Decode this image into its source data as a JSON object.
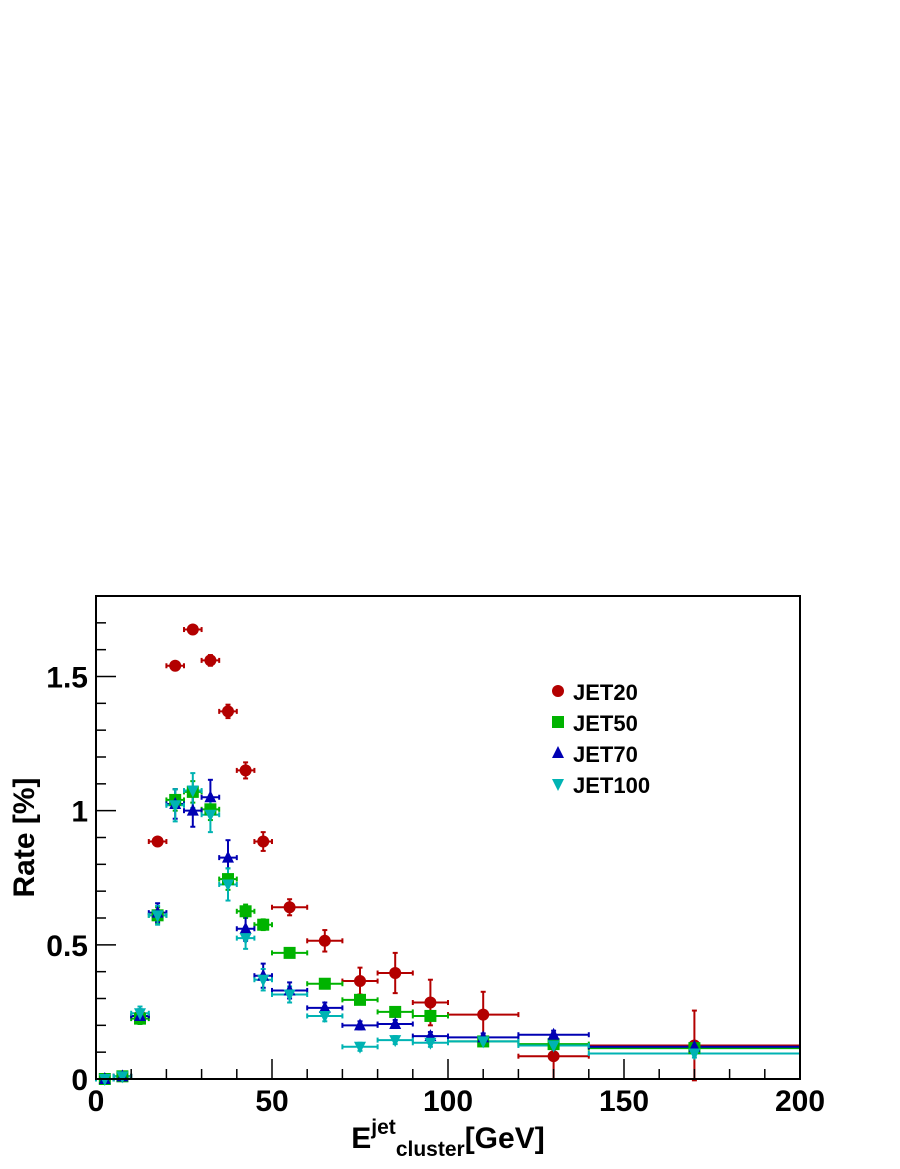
{
  "chart_data": {
    "type": "scatter",
    "xlabel_main": "E",
    "xlabel_sup": "jet",
    "xlabel_sub": "cluster",
    "xlabel_unit": "[GeV]",
    "ylabel": "Rate  [%]",
    "xlim": [
      0,
      200
    ],
    "ylim": [
      0,
      1.8
    ],
    "xticks": [
      0,
      50,
      100,
      150,
      200
    ],
    "xtick_labels": [
      "0",
      "50",
      "100",
      "150",
      "200"
    ],
    "yticks": [
      0,
      0.5,
      1,
      1.5
    ],
    "ytick_labels": [
      "0",
      "0.5",
      "1",
      "1.5"
    ],
    "grid": false,
    "legend_position": "top-right",
    "series": [
      {
        "name": "JET20",
        "color": "#b30000",
        "marker": "circle",
        "points": [
          {
            "x": 2.5,
            "y": 0.0,
            "xerr": 2.5,
            "yerr": 0.0
          },
          {
            "x": 7.5,
            "y": 0.01,
            "xerr": 2.5,
            "yerr": 0.003
          },
          {
            "x": 12.5,
            "y": 0.235,
            "xerr": 2.5,
            "yerr": 0.01
          },
          {
            "x": 17.5,
            "y": 0.885,
            "xerr": 2.5,
            "yerr": 0.015
          },
          {
            "x": 22.5,
            "y": 1.54,
            "xerr": 2.5,
            "yerr": 0.015
          },
          {
            "x": 27.5,
            "y": 1.675,
            "xerr": 2.5,
            "yerr": 0.015
          },
          {
            "x": 32.5,
            "y": 1.56,
            "xerr": 2.5,
            "yerr": 0.02
          },
          {
            "x": 37.5,
            "y": 1.37,
            "xerr": 2.5,
            "yerr": 0.025
          },
          {
            "x": 42.5,
            "y": 1.15,
            "xerr": 2.5,
            "yerr": 0.03
          },
          {
            "x": 47.5,
            "y": 0.885,
            "xerr": 2.5,
            "yerr": 0.035
          },
          {
            "x": 55,
            "y": 0.64,
            "xerr": 5,
            "yerr": 0.03
          },
          {
            "x": 65,
            "y": 0.515,
            "xerr": 5,
            "yerr": 0.04
          },
          {
            "x": 75,
            "y": 0.365,
            "xerr": 5,
            "yerr": 0.05
          },
          {
            "x": 85,
            "y": 0.395,
            "xerr": 5,
            "yerr": 0.075
          },
          {
            "x": 95,
            "y": 0.285,
            "xerr": 5,
            "yerr": 0.085
          },
          {
            "x": 110,
            "y": 0.24,
            "xerr": 10,
            "yerr": 0.085
          },
          {
            "x": 130,
            "y": 0.085,
            "xerr": 10,
            "yerr": 0.085
          },
          {
            "x": 170,
            "y": 0.125,
            "xerr": 30,
            "yerr": 0.13
          }
        ]
      },
      {
        "name": "JET50",
        "color": "#00b300",
        "marker": "square",
        "points": [
          {
            "x": 2.5,
            "y": 0.0,
            "xerr": 2.5,
            "yerr": 0.0
          },
          {
            "x": 7.5,
            "y": 0.01,
            "xerr": 2.5,
            "yerr": 0.003
          },
          {
            "x": 12.5,
            "y": 0.225,
            "xerr": 2.5,
            "yerr": 0.02
          },
          {
            "x": 17.5,
            "y": 0.61,
            "xerr": 2.5,
            "yerr": 0.03
          },
          {
            "x": 22.5,
            "y": 1.04,
            "xerr": 2.5,
            "yerr": 0.04
          },
          {
            "x": 27.5,
            "y": 1.07,
            "xerr": 2.5,
            "yerr": 0.04
          },
          {
            "x": 32.5,
            "y": 1.005,
            "xerr": 2.5,
            "yerr": 0.04
          },
          {
            "x": 37.5,
            "y": 0.745,
            "xerr": 2.5,
            "yerr": 0.04
          },
          {
            "x": 42.5,
            "y": 0.625,
            "xerr": 2.5,
            "yerr": 0.025
          },
          {
            "x": 47.5,
            "y": 0.575,
            "xerr": 2.5,
            "yerr": 0.02
          },
          {
            "x": 55,
            "y": 0.47,
            "xerr": 5,
            "yerr": 0.015
          },
          {
            "x": 65,
            "y": 0.355,
            "xerr": 5,
            "yerr": 0.015
          },
          {
            "x": 75,
            "y": 0.295,
            "xerr": 5,
            "yerr": 0.015
          },
          {
            "x": 85,
            "y": 0.25,
            "xerr": 5,
            "yerr": 0.015
          },
          {
            "x": 95,
            "y": 0.235,
            "xerr": 5,
            "yerr": 0.015
          },
          {
            "x": 110,
            "y": 0.14,
            "xerr": 10,
            "yerr": 0.015
          },
          {
            "x": 130,
            "y": 0.13,
            "xerr": 10,
            "yerr": 0.015
          },
          {
            "x": 170,
            "y": 0.115,
            "xerr": 30,
            "yerr": 0.015
          }
        ]
      },
      {
        "name": "JET70",
        "color": "#0000b3",
        "marker": "triangle-up",
        "points": [
          {
            "x": 2.5,
            "y": 0.0,
            "xerr": 2.5,
            "yerr": 0.0
          },
          {
            "x": 7.5,
            "y": 0.01,
            "xerr": 2.5,
            "yerr": 0.003
          },
          {
            "x": 12.5,
            "y": 0.235,
            "xerr": 2.5,
            "yerr": 0.025
          },
          {
            "x": 17.5,
            "y": 0.62,
            "xerr": 2.5,
            "yerr": 0.035
          },
          {
            "x": 22.5,
            "y": 1.025,
            "xerr": 2.5,
            "yerr": 0.055
          },
          {
            "x": 27.5,
            "y": 1.0,
            "xerr": 2.5,
            "yerr": 0.06
          },
          {
            "x": 32.5,
            "y": 1.05,
            "xerr": 2.5,
            "yerr": 0.065
          },
          {
            "x": 37.5,
            "y": 0.825,
            "xerr": 2.5,
            "yerr": 0.065
          },
          {
            "x": 42.5,
            "y": 0.56,
            "xerr": 2.5,
            "yerr": 0.045
          },
          {
            "x": 47.5,
            "y": 0.385,
            "xerr": 2.5,
            "yerr": 0.045
          },
          {
            "x": 55,
            "y": 0.33,
            "xerr": 5,
            "yerr": 0.03
          },
          {
            "x": 65,
            "y": 0.265,
            "xerr": 5,
            "yerr": 0.02
          },
          {
            "x": 75,
            "y": 0.2,
            "xerr": 5,
            "yerr": 0.015
          },
          {
            "x": 85,
            "y": 0.205,
            "xerr": 5,
            "yerr": 0.015
          },
          {
            "x": 95,
            "y": 0.16,
            "xerr": 5,
            "yerr": 0.015
          },
          {
            "x": 110,
            "y": 0.155,
            "xerr": 10,
            "yerr": 0.015
          },
          {
            "x": 130,
            "y": 0.165,
            "xerr": 10,
            "yerr": 0.015
          },
          {
            "x": 170,
            "y": 0.12,
            "xerr": 30,
            "yerr": 0.015
          }
        ]
      },
      {
        "name": "JET100",
        "color": "#00b3b3",
        "marker": "triangle-down",
        "points": [
          {
            "x": 2.5,
            "y": 0.0,
            "xerr": 2.5,
            "yerr": 0.0
          },
          {
            "x": 7.5,
            "y": 0.01,
            "xerr": 2.5,
            "yerr": 0.003
          },
          {
            "x": 12.5,
            "y": 0.245,
            "xerr": 2.5,
            "yerr": 0.025
          },
          {
            "x": 17.5,
            "y": 0.61,
            "xerr": 2.5,
            "yerr": 0.035
          },
          {
            "x": 22.5,
            "y": 1.02,
            "xerr": 2.5,
            "yerr": 0.06
          },
          {
            "x": 27.5,
            "y": 1.075,
            "xerr": 2.5,
            "yerr": 0.065
          },
          {
            "x": 32.5,
            "y": 0.985,
            "xerr": 2.5,
            "yerr": 0.065
          },
          {
            "x": 37.5,
            "y": 0.725,
            "xerr": 2.5,
            "yerr": 0.06
          },
          {
            "x": 42.5,
            "y": 0.525,
            "xerr": 2.5,
            "yerr": 0.04
          },
          {
            "x": 47.5,
            "y": 0.37,
            "xerr": 2.5,
            "yerr": 0.04
          },
          {
            "x": 55,
            "y": 0.315,
            "xerr": 5,
            "yerr": 0.03
          },
          {
            "x": 65,
            "y": 0.235,
            "xerr": 5,
            "yerr": 0.02
          },
          {
            "x": 75,
            "y": 0.12,
            "xerr": 5,
            "yerr": 0.015
          },
          {
            "x": 85,
            "y": 0.145,
            "xerr": 5,
            "yerr": 0.015
          },
          {
            "x": 95,
            "y": 0.135,
            "xerr": 5,
            "yerr": 0.015
          },
          {
            "x": 110,
            "y": 0.14,
            "xerr": 10,
            "yerr": 0.015
          },
          {
            "x": 130,
            "y": 0.125,
            "xerr": 10,
            "yerr": 0.015
          },
          {
            "x": 170,
            "y": 0.095,
            "xerr": 30,
            "yerr": 0.015
          }
        ]
      }
    ]
  }
}
